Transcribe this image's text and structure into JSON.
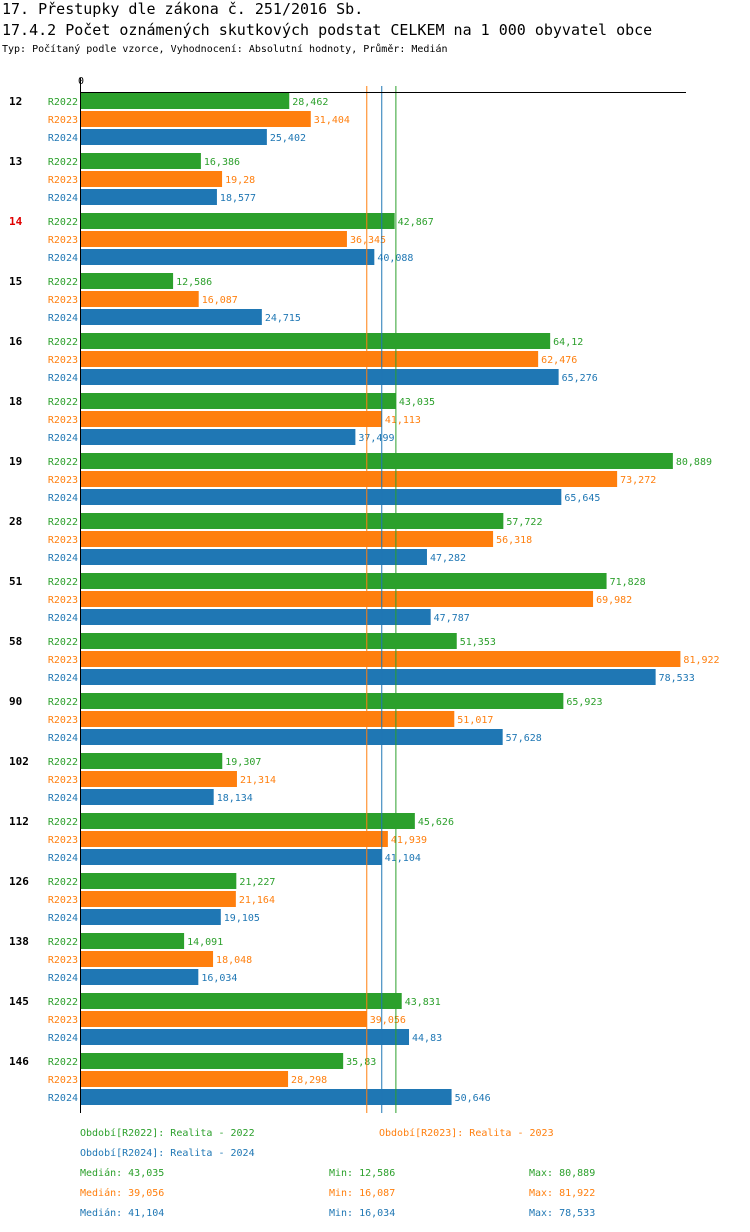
{
  "header": {
    "title": "17. Přestupky dle zákona č. 251/2016 Sb.",
    "subtitle": "17.4.2 Počet oznámených skutkových podstat CELKEM na 1 000 obyvatel obce",
    "description": "Typ: Počítaný podle vzorce, Vyhodnocení: Absolutní hodnoty, Průměr: Medián"
  },
  "chart_data": {
    "type": "bar",
    "orientation": "horizontal",
    "title": "17.4.2 Počet oznámených skutkových podstat CELKEM na 1 000 obyvatel obce",
    "xlabel": "",
    "ylabel": "",
    "xlim": [
      0,
      82
    ],
    "axis_zero_label": "0",
    "grid": false,
    "categories": [
      "12",
      "13",
      "14",
      "15",
      "16",
      "18",
      "19",
      "28",
      "51",
      "58",
      "90",
      "102",
      "112",
      "126",
      "138",
      "145",
      "146"
    ],
    "highlight_category": "14",
    "highlight_color": "#e00000",
    "series": [
      {
        "name": "R2022",
        "color": "#2ca02c",
        "values": [
          28.462,
          16.386,
          42.867,
          12.586,
          64.12,
          43.035,
          80.889,
          57.722,
          71.828,
          51.353,
          65.923,
          19.307,
          45.626,
          21.227,
          14.091,
          43.831,
          35.83
        ],
        "labels": [
          "28,462",
          "16,386",
          "42,867",
          "12,586",
          "64,12",
          "43,035",
          "80,889",
          "57,722",
          "71,828",
          "51,353",
          "65,923",
          "19,307",
          "45,626",
          "21,227",
          "14,091",
          "43,831",
          "35,83"
        ],
        "median": 43.035
      },
      {
        "name": "R2023",
        "color": "#ff7f0e",
        "values": [
          31.404,
          19.28,
          36.345,
          16.087,
          62.476,
          41.113,
          73.272,
          56.318,
          69.982,
          81.922,
          51.017,
          21.314,
          41.939,
          21.164,
          18.048,
          39.056,
          28.298
        ],
        "labels": [
          "31,404",
          "19,28",
          "36,345",
          "16,087",
          "62,476",
          "41,113",
          "73,272",
          "56,318",
          "69,982",
          "81,922",
          "51,017",
          "21,314",
          "41,939",
          "21,164",
          "18,048",
          "39,056",
          "28,298"
        ],
        "median": 39.056
      },
      {
        "name": "R2024",
        "color": "#1f77b4",
        "values": [
          25.402,
          18.577,
          40.088,
          24.715,
          65.276,
          37.499,
          65.645,
          47.282,
          47.787,
          78.533,
          57.628,
          18.134,
          41.104,
          19.105,
          16.034,
          44.83,
          50.646
        ],
        "labels": [
          "25,402",
          "18,577",
          "40,088",
          "24,715",
          "65,276",
          "37,499",
          "65,645",
          "47,282",
          "47,787",
          "78,533",
          "57,628",
          "18,134",
          "41,104",
          "19,105",
          "16,034",
          "44,83",
          "50,646"
        ],
        "median": 41.104
      }
    ],
    "legend": {
      "placement": "bottom",
      "entries": [
        "Období[R2022]: Realita - 2022",
        "Období[R2023]: Realita - 2023",
        "Období[R2024]: Realita - 2024"
      ]
    },
    "stats": [
      {
        "median": "Medián: 43,035",
        "min": "Min: 12,586",
        "max": "Max: 80,889"
      },
      {
        "median": "Medián: 39,056",
        "min": "Min: 16,087",
        "max": "Max: 81,922"
      },
      {
        "median": "Medián: 41,104",
        "min": "Min: 16,034",
        "max": "Max: 78,533"
      }
    ]
  }
}
